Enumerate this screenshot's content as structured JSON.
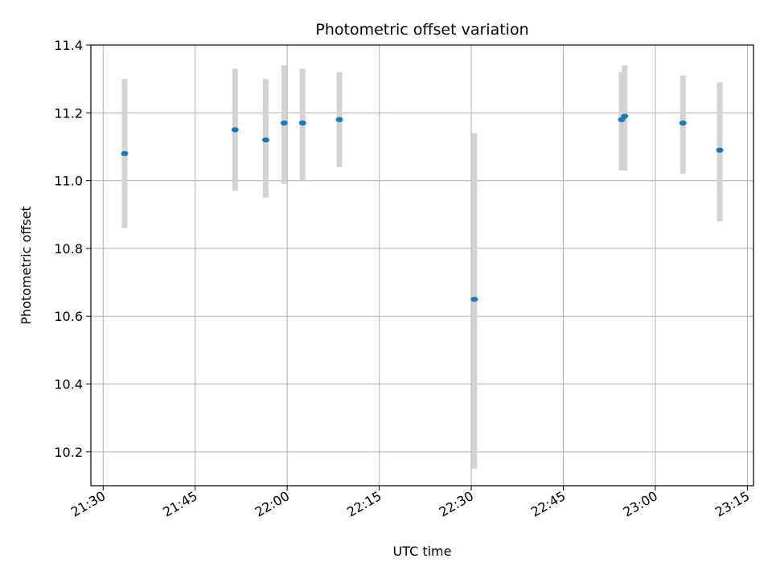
{
  "chart_data": {
    "type": "scatter",
    "title": "Photometric offset variation",
    "xlabel": "UTC time",
    "ylabel": "Photometric offset",
    "x_ticks": [
      "21:30",
      "21:45",
      "22:00",
      "22:15",
      "22:30",
      "22:45",
      "23:00",
      "23:15"
    ],
    "y_ticks": [
      "10.2",
      "10.4",
      "10.6",
      "10.8",
      "11.0",
      "11.2",
      "11.4"
    ],
    "xlim": [
      "21:28",
      "23:16"
    ],
    "ylim": [
      10.1,
      11.4
    ],
    "grid": true,
    "point_color": "#1f77b4",
    "errorbar_color": "#d3d3d3",
    "points": [
      {
        "t": "21:33:30",
        "y": 11.08,
        "err_low": 10.86,
        "err_high": 11.3
      },
      {
        "t": "21:51:30",
        "y": 11.15,
        "err_low": 10.97,
        "err_high": 11.33
      },
      {
        "t": "21:56:30",
        "y": 11.12,
        "err_low": 10.95,
        "err_high": 11.3
      },
      {
        "t": "21:59:30",
        "y": 11.17,
        "err_low": 10.99,
        "err_high": 11.34
      },
      {
        "t": "22:02:30",
        "y": 11.17,
        "err_low": 11.0,
        "err_high": 11.33
      },
      {
        "t": "22:08:30",
        "y": 11.18,
        "err_low": 11.04,
        "err_high": 11.32
      },
      {
        "t": "22:30:30",
        "y": 10.65,
        "err_low": 10.15,
        "err_high": 11.14
      },
      {
        "t": "22:54:30",
        "y": 11.18,
        "err_low": 11.03,
        "err_high": 11.32
      },
      {
        "t": "22:55:00",
        "y": 11.19,
        "err_low": 11.03,
        "err_high": 11.34
      },
      {
        "t": "23:04:30",
        "y": 11.17,
        "err_low": 11.02,
        "err_high": 11.31
      },
      {
        "t": "23:10:30",
        "y": 11.09,
        "err_low": 10.88,
        "err_high": 11.29
      }
    ]
  }
}
